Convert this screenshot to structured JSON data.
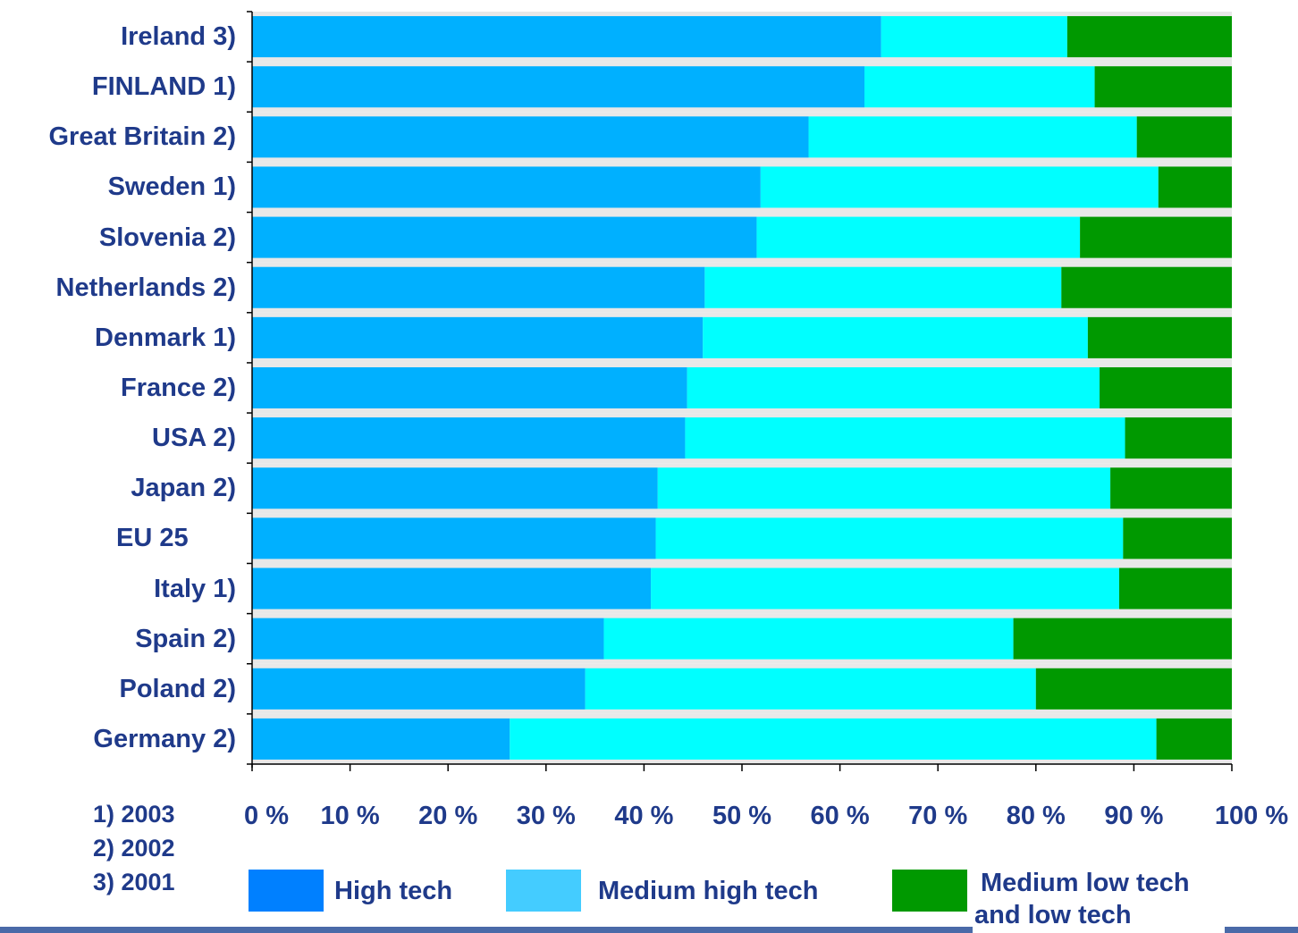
{
  "chart_data": {
    "type": "bar",
    "orientation": "horizontal",
    "stacked": true,
    "categories": [
      "Ireland 3)",
      "FINLAND 1)",
      "Great Britain 2)",
      "Sweden 1)",
      "Slovenia 2)",
      "Netherlands 2)",
      "Denmark 1)",
      "France 2)",
      "USA 2)",
      "Japan 2)",
      "EU 25",
      "Italy 1)",
      "Spain 2)",
      "Poland 2)",
      "Germany 2)"
    ],
    "series": [
      {
        "name": "High tech",
        "color": "#00b0ff",
        "values": [
          64.2,
          62.5,
          56.8,
          51.9,
          51.5,
          46.2,
          46.0,
          44.4,
          44.2,
          41.4,
          41.2,
          40.7,
          35.9,
          34.0,
          26.3
        ]
      },
      {
        "name": "Medium high tech",
        "color": "#00ffff",
        "values": [
          19.0,
          23.5,
          33.5,
          40.6,
          33.0,
          36.4,
          39.3,
          42.1,
          44.9,
          46.2,
          47.7,
          47.8,
          41.8,
          46.0,
          66.0
        ]
      },
      {
        "name": "Medium low tech and low tech",
        "color": "#009900",
        "values": [
          16.8,
          14.0,
          9.7,
          7.5,
          15.5,
          17.4,
          14.7,
          13.5,
          10.9,
          12.4,
          11.1,
          11.5,
          22.3,
          20.0,
          7.7
        ]
      }
    ],
    "xlim": [
      0,
      100
    ],
    "xticks": [
      "0 %",
      "10 %",
      "20 %",
      "30 %",
      "40 %",
      "50 %",
      "60 %",
      "70 %",
      "80 %",
      "90 %",
      "100 %"
    ],
    "grid": false,
    "legend_position": "bottom",
    "title": "",
    "xlabel": "",
    "ylabel": ""
  },
  "notes": [
    "1) 2003",
    "2) 2002",
    "3) 2001"
  ],
  "legend": {
    "items": [
      {
        "swatch_color": "#0080ff",
        "label_lines": [
          "High tech"
        ]
      },
      {
        "swatch_color": "#44ccff",
        "label_lines": [
          "Medium high tech"
        ]
      },
      {
        "swatch_color": "#009900",
        "label_lines": [
          "Medium low tech",
          "and low tech"
        ]
      }
    ]
  }
}
